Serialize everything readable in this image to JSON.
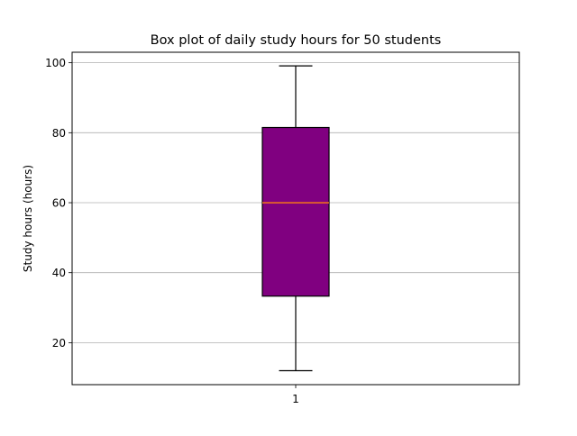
{
  "chart_data": {
    "type": "boxplot",
    "title": "Box plot of daily study hours for 50 students",
    "xlabel": "",
    "ylabel": "Study hours (hours)",
    "categories": [
      "1"
    ],
    "ylim": [
      8,
      103
    ],
    "yticks": [
      20,
      40,
      60,
      80,
      100
    ],
    "grid": "y",
    "box": {
      "whisker_low": 12.0,
      "q1": 33.3,
      "median": 60.0,
      "q3": 81.5,
      "whisker_high": 99.1
    },
    "colors": {
      "box_fill": "#800080",
      "median": "#ff7f0e",
      "edge": "#000000",
      "grid": "#b0b0b0"
    }
  }
}
